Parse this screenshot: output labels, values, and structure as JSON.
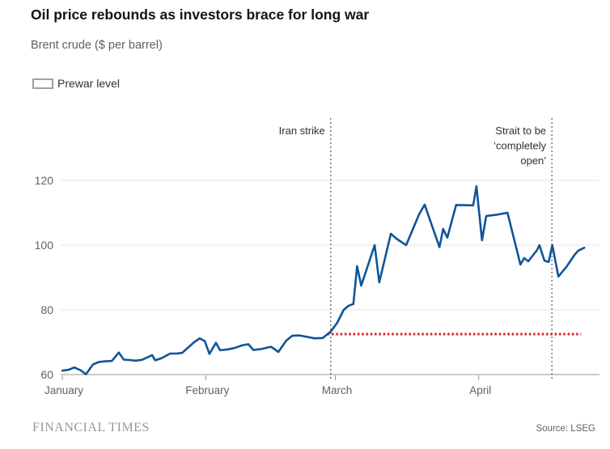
{
  "title": "Oil price rebounds as investors brace for long war",
  "subtitle": "Brent crude ($ per barrel)",
  "legend": {
    "label": "Prewar level"
  },
  "footer": {
    "brand": "FINANCIAL TIMES",
    "source": "Source: LSEG"
  },
  "colors": {
    "line": "#0f5499",
    "prewar_dotted": "#d4202c",
    "gridline": "#e8e4df",
    "baseline": "#9c968e",
    "axis_text": "#66605c",
    "event_line": "#66605c",
    "event_text": "#33302e",
    "title_text": "#17140f"
  },
  "chart_data": {
    "type": "line",
    "title": "Oil price rebounds as investors brace for long war",
    "ylabel": "Brent crude ($ per barrel)",
    "grid": "horizontal",
    "legend_position": "top-left",
    "x_axis": {
      "unit": "days since 1 January",
      "domain": [
        0,
        116
      ],
      "ticks": [
        {
          "label": "January",
          "day": 0
        },
        {
          "label": "February",
          "day": 31
        },
        {
          "label": "March",
          "day": 59
        },
        {
          "label": "April",
          "day": 90
        }
      ]
    },
    "y_axis": {
      "ticks": [
        60,
        80,
        100,
        120
      ],
      "ylim": [
        60,
        120
      ]
    },
    "series": [
      {
        "name": "Brent crude ($ per barrel)",
        "color": "#0f5499",
        "points": [
          [
            0,
            61.2
          ],
          [
            1.4,
            61.5
          ],
          [
            2.6,
            62.2
          ],
          [
            4,
            61.3
          ],
          [
            5.1,
            60.1
          ],
          [
            6.6,
            63.1
          ],
          [
            7.9,
            63.9
          ],
          [
            9.3,
            64.1
          ],
          [
            10.7,
            64.2
          ],
          [
            12.2,
            66.8
          ],
          [
            13.3,
            64.6
          ],
          [
            14.5,
            64.5
          ],
          [
            15.9,
            64.3
          ],
          [
            17.3,
            64.6
          ],
          [
            19.4,
            66
          ],
          [
            20.1,
            64.4
          ],
          [
            21.5,
            65.1
          ],
          [
            23.3,
            66.5
          ],
          [
            24.7,
            66.5
          ],
          [
            25.9,
            66.7
          ],
          [
            27.3,
            68.5
          ],
          [
            28.5,
            70
          ],
          [
            29.7,
            71.2
          ],
          [
            30.8,
            70.3
          ],
          [
            31.8,
            66.4
          ],
          [
            33.2,
            69.8
          ],
          [
            34.1,
            67.5
          ],
          [
            35.8,
            67.8
          ],
          [
            37.2,
            68.2
          ],
          [
            38.8,
            69
          ],
          [
            40.2,
            69.4
          ],
          [
            41.3,
            67.6
          ],
          [
            43,
            67.9
          ],
          [
            45.1,
            68.6
          ],
          [
            46.7,
            67
          ],
          [
            48.4,
            70.5
          ],
          [
            49.7,
            72
          ],
          [
            51.2,
            72.1
          ],
          [
            53.1,
            71.6
          ],
          [
            54.5,
            71.2
          ],
          [
            56.3,
            71.3
          ],
          [
            57.3,
            72.5
          ],
          [
            58,
            73.3
          ],
          [
            59.4,
            76
          ],
          [
            60.8,
            80
          ],
          [
            61.9,
            81.3
          ],
          [
            62.9,
            81.8
          ],
          [
            63.7,
            93.5
          ],
          [
            64.6,
            87.5
          ],
          [
            67.5,
            100
          ],
          [
            68.5,
            88.5
          ],
          [
            71,
            103.5
          ],
          [
            72.2,
            102
          ],
          [
            74.3,
            100
          ],
          [
            77.1,
            109.5
          ],
          [
            78.3,
            112.5
          ],
          [
            81.5,
            99.4
          ],
          [
            82.3,
            105
          ],
          [
            83.2,
            102.3
          ],
          [
            85.1,
            112.4
          ],
          [
            88.8,
            112.3
          ],
          [
            89.5,
            118.2
          ],
          [
            90.7,
            101.5
          ],
          [
            91.6,
            109
          ],
          [
            93.9,
            109.4
          ],
          [
            96.2,
            110
          ],
          [
            99,
            94
          ],
          [
            99.8,
            96
          ],
          [
            100.7,
            95
          ],
          [
            102.6,
            98.5
          ],
          [
            103.1,
            100
          ],
          [
            104.2,
            95.2
          ],
          [
            105.1,
            94.8
          ],
          [
            105.9,
            100
          ],
          [
            107.2,
            90.3
          ],
          [
            108.9,
            93.2
          ],
          [
            110.7,
            97
          ],
          [
            111.5,
            98.3
          ],
          [
            112.8,
            99.2
          ]
        ]
      }
    ],
    "reference_line": {
      "label": "Prewar level",
      "value": 72.5,
      "style": "dotted",
      "color": "#d4202c",
      "start_day": 57.3,
      "end_day": 112.1
    },
    "events": [
      {
        "label": "Iran strike",
        "lines": [
          "Iran strike"
        ],
        "day": 58
      },
      {
        "label": "Strait to be ‘completely open’",
        "lines": [
          "Strait to be",
          "‘completely",
          "open’"
        ],
        "day": 105.8
      }
    ]
  }
}
